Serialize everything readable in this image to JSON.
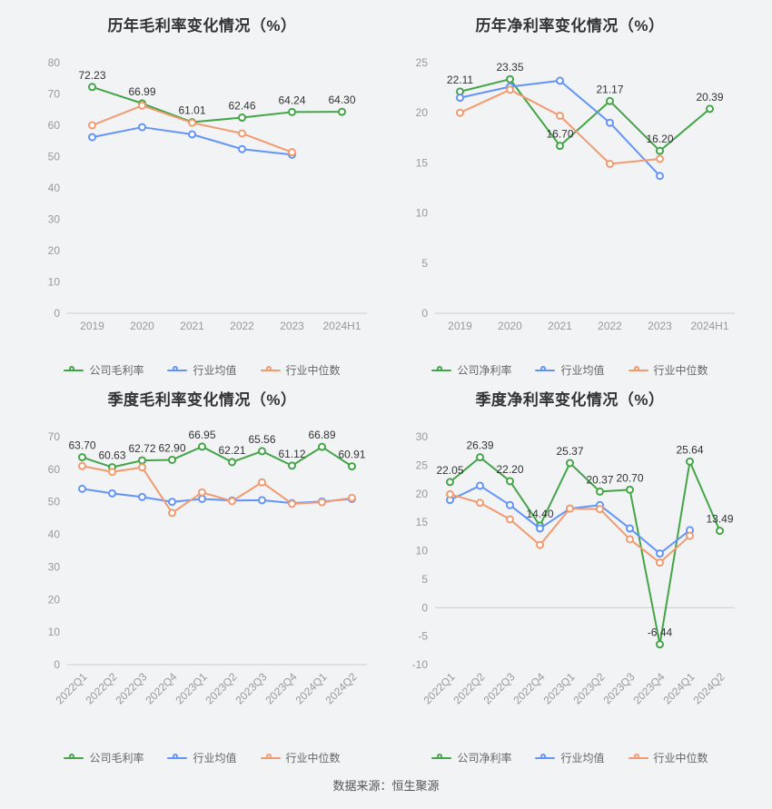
{
  "page": {
    "source_note": "数据来源：恒生聚源"
  },
  "colors": {
    "green": "#43a547",
    "blue": "#6394f8",
    "orange": "#f09b70",
    "axis": "#cccccc",
    "tick_text": "#999999",
    "title_text": "#333333",
    "legend_text": "#666666"
  },
  "chart_data": [
    {
      "type": "line",
      "title": "历年毛利率变化情况（%）",
      "categories": [
        "2019",
        "2020",
        "2021",
        "2022",
        "2023",
        "2024H1"
      ],
      "ylim": [
        0,
        80
      ],
      "yticks": [
        0,
        10,
        20,
        30,
        40,
        50,
        60,
        70,
        80
      ],
      "rotate_x_labels": false,
      "grid": false,
      "legend_position": "bottom",
      "series": [
        {
          "name": "公司毛利率",
          "color_key": "green",
          "values": [
            72.23,
            66.99,
            61.01,
            62.46,
            64.24,
            64.3
          ],
          "labels": [
            "72.23",
            "66.99",
            "61.01",
            "62.46",
            "64.24",
            "64.30"
          ]
        },
        {
          "name": "行业均值",
          "color_key": "blue",
          "values": [
            56.2,
            59.4,
            57.1,
            52.4,
            50.6,
            null
          ]
        },
        {
          "name": "行业中位数",
          "color_key": "orange",
          "values": [
            60.0,
            66.3,
            60.8,
            57.4,
            51.4,
            null
          ]
        }
      ]
    },
    {
      "type": "line",
      "title": "历年净利率变化情况（%）",
      "categories": [
        "2019",
        "2020",
        "2021",
        "2022",
        "2023",
        "2024H1"
      ],
      "ylim": [
        0,
        25
      ],
      "yticks": [
        0,
        5,
        10,
        15,
        20,
        25
      ],
      "rotate_x_labels": false,
      "grid": false,
      "legend_position": "bottom",
      "series": [
        {
          "name": "公司净利率",
          "color_key": "green",
          "values": [
            22.11,
            23.35,
            16.7,
            21.17,
            16.2,
            20.39
          ],
          "labels": [
            "22.11",
            "23.35",
            "16.70",
            "21.17",
            "16.20",
            "20.39"
          ]
        },
        {
          "name": "行业均值",
          "color_key": "blue",
          "values": [
            21.5,
            22.6,
            23.2,
            19.0,
            13.7,
            null
          ]
        },
        {
          "name": "行业中位数",
          "color_key": "orange",
          "values": [
            20.0,
            22.3,
            19.7,
            14.9,
            15.4,
            null
          ]
        }
      ]
    },
    {
      "type": "line",
      "title": "季度毛利率变化情况（%）",
      "categories": [
        "2022Q1",
        "2022Q2",
        "2022Q3",
        "2022Q4",
        "2023Q1",
        "2023Q2",
        "2023Q3",
        "2023Q4",
        "2024Q1",
        "2024Q2"
      ],
      "ylim": [
        0,
        70
      ],
      "yticks": [
        0,
        10,
        20,
        30,
        40,
        50,
        60,
        70
      ],
      "rotate_x_labels": true,
      "grid": false,
      "legend_position": "bottom",
      "series": [
        {
          "name": "公司毛利率",
          "color_key": "green",
          "values": [
            63.7,
            60.63,
            62.72,
            62.9,
            66.95,
            62.21,
            65.56,
            61.12,
            66.89,
            60.91
          ],
          "labels": [
            "63.70",
            "60.63",
            "62.72",
            "62.90",
            "66.95",
            "62.21",
            "65.56",
            "61.12",
            "66.89",
            "60.91"
          ]
        },
        {
          "name": "行业均值",
          "color_key": "blue",
          "values": [
            54.0,
            52.6,
            51.5,
            50.0,
            50.9,
            50.4,
            50.5,
            49.6,
            50.1,
            50.9
          ]
        },
        {
          "name": "行业中位数",
          "color_key": "orange",
          "values": [
            61.0,
            59.2,
            60.6,
            46.6,
            52.9,
            50.2,
            56.0,
            49.4,
            49.9,
            51.2
          ]
        }
      ]
    },
    {
      "type": "line",
      "title": "季度净利率变化情况（%）",
      "categories": [
        "2022Q1",
        "2022Q2",
        "2022Q3",
        "2022Q4",
        "2023Q1",
        "2023Q2",
        "2023Q3",
        "2023Q4",
        "2024Q1",
        "2024Q2"
      ],
      "ylim": [
        -10,
        30
      ],
      "yticks": [
        -10,
        -5,
        0,
        5,
        10,
        15,
        20,
        25,
        30
      ],
      "rotate_x_labels": true,
      "grid": false,
      "legend_position": "bottom",
      "series": [
        {
          "name": "公司净利率",
          "color_key": "green",
          "values": [
            22.05,
            26.39,
            22.2,
            14.4,
            25.37,
            20.37,
            20.7,
            -6.44,
            25.64,
            13.49
          ],
          "labels": [
            "22.05",
            "26.39",
            "22.20",
            "14.40",
            "25.37",
            "20.37",
            "20.70",
            "-6.44",
            "25.64",
            "13.49"
          ]
        },
        {
          "name": "行业均值",
          "color_key": "blue",
          "values": [
            18.9,
            21.4,
            18.0,
            13.9,
            17.4,
            18.0,
            13.9,
            9.5,
            13.6,
            null
          ]
        },
        {
          "name": "行业中位数",
          "color_key": "orange",
          "values": [
            19.9,
            18.4,
            15.5,
            11.0,
            17.4,
            17.3,
            12.0,
            7.9,
            12.6,
            null
          ]
        }
      ]
    }
  ]
}
